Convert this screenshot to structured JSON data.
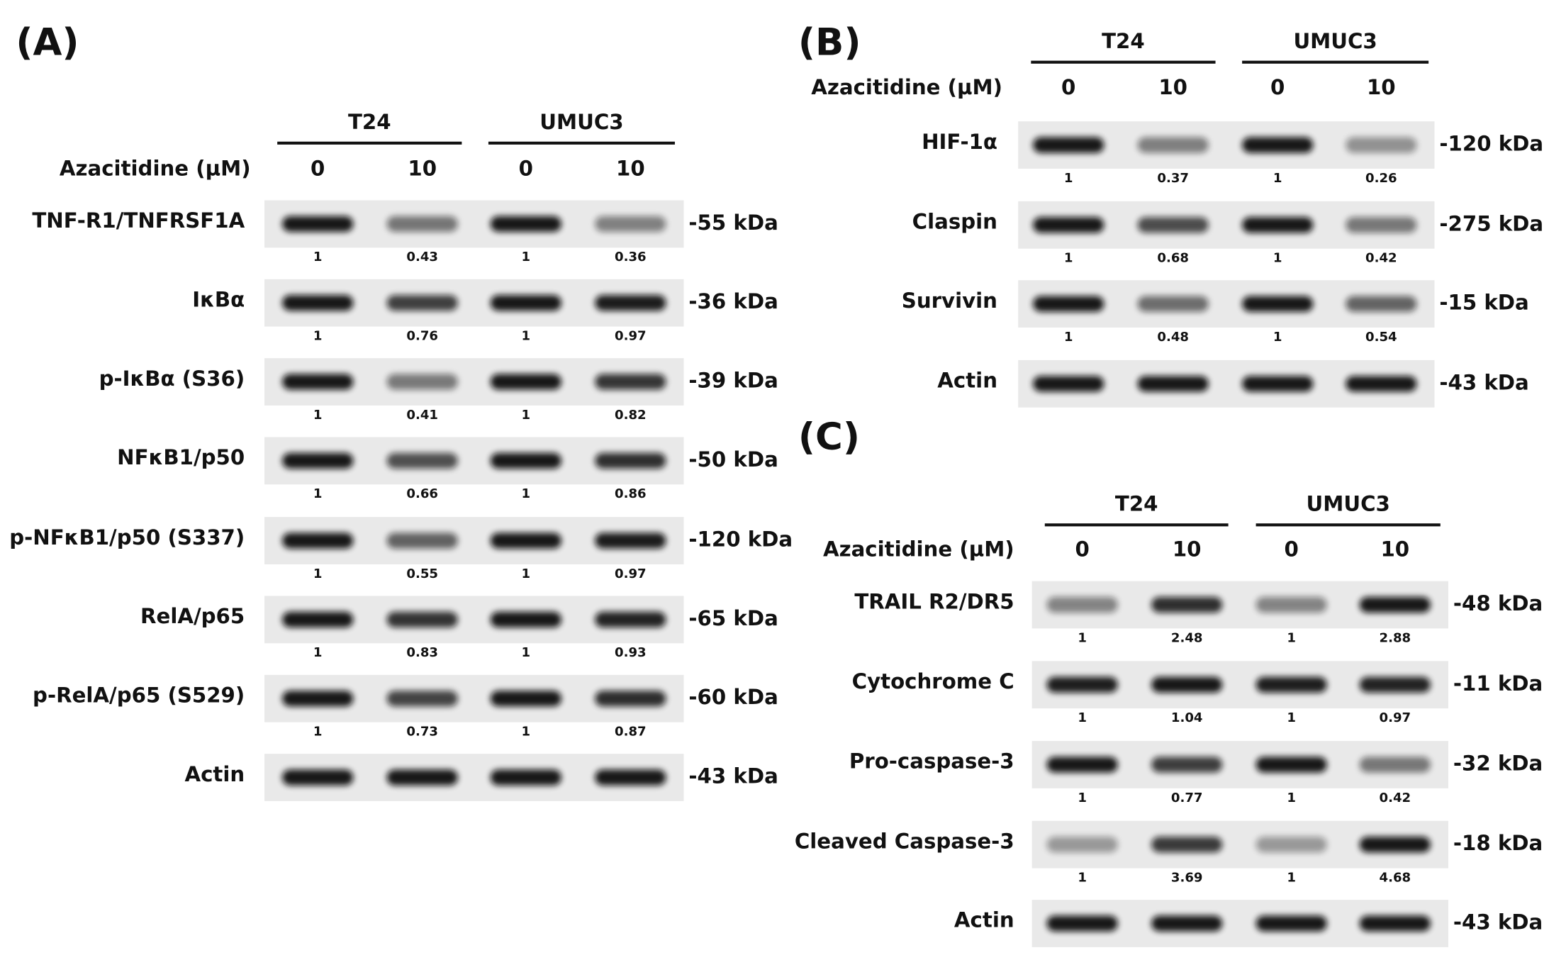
{
  "panels": [
    {
      "label": "(A)",
      "cell_lines": [
        "T24",
        "UMUC3"
      ],
      "treatment_label": "Azacitidine (µM)",
      "doses": [
        "0",
        "10",
        "0",
        "10"
      ],
      "rows": [
        {
          "name": "TNF-R1/TNFRSF1A",
          "kda": "-55 kDa",
          "quant": [
            "1",
            "0.43",
            "1",
            "0.36"
          ]
        },
        {
          "name": "IκBα",
          "kda": "-36 kDa",
          "quant": [
            "1",
            "0.76",
            "1",
            "0.97"
          ]
        },
        {
          "name": "p-IκBα (S36)",
          "kda": "-39 kDa",
          "quant": [
            "1",
            "0.41",
            "1",
            "0.82"
          ]
        },
        {
          "name": "NFκB1/p50",
          "kda": "-50 kDa",
          "quant": [
            "1",
            "0.66",
            "1",
            "0.86"
          ]
        },
        {
          "name": "p-NFκB1/p50 (S337)",
          "kda": "-120 kDa",
          "quant": [
            "1",
            "0.55",
            "1",
            "0.97"
          ]
        },
        {
          "name": "RelA/p65",
          "kda": "-65 kDa",
          "quant": [
            "1",
            "0.83",
            "1",
            "0.93"
          ]
        },
        {
          "name": "p-RelA/p65 (S529)",
          "kda": "-60 kDa",
          "quant": [
            "1",
            "0.73",
            "1",
            "0.87"
          ]
        },
        {
          "name": "Actin",
          "kda": "-43 kDa"
        }
      ]
    },
    {
      "label": "(B)",
      "cell_lines": [
        "T24",
        "UMUC3"
      ],
      "treatment_label": "Azacitidine (µM)",
      "doses": [
        "0",
        "10",
        "0",
        "10"
      ],
      "rows": [
        {
          "name": "HIF-1α",
          "kda": "-120 kDa",
          "quant": [
            "1",
            "0.37",
            "1",
            "0.26"
          ]
        },
        {
          "name": "Claspin",
          "kda": "-275 kDa",
          "quant": [
            "1",
            "0.68",
            "1",
            "0.42"
          ]
        },
        {
          "name": "Survivin",
          "kda": "-15 kDa",
          "quant": [
            "1",
            "0.48",
            "1",
            "0.54"
          ]
        },
        {
          "name": "Actin",
          "kda": "-43 kDa"
        }
      ]
    },
    {
      "label": "(C)",
      "cell_lines": [
        "T24",
        "UMUC3"
      ],
      "treatment_label": "Azacitidine (µM)",
      "doses": [
        "0",
        "10",
        "0",
        "10"
      ],
      "rows": [
        {
          "name": "TRAIL R2/DR5",
          "kda": "-48 kDa",
          "quant": [
            "1",
            "2.48",
            "1",
            "2.88"
          ]
        },
        {
          "name": "Cytochrome C",
          "kda": "-11 kDa",
          "quant": [
            "1",
            "1.04",
            "1",
            "0.97"
          ]
        },
        {
          "name": "Pro-caspase-3",
          "kda": "-32 kDa",
          "quant": [
            "1",
            "0.77",
            "1",
            "0.42"
          ]
        },
        {
          "name": "Cleaved Caspase-3",
          "kda": "-18 kDa",
          "quant": [
            "1",
            "3.69",
            "1",
            "4.68"
          ]
        },
        {
          "name": "Actin",
          "kda": "-43 kDa"
        }
      ]
    }
  ]
}
